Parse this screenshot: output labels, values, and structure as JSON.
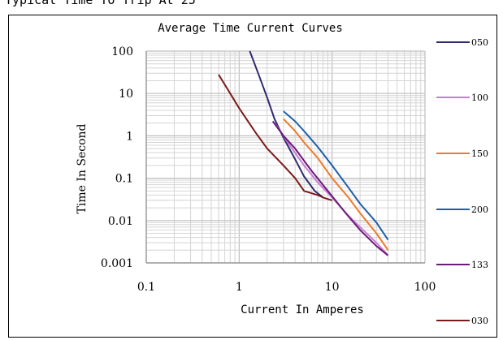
{
  "heading": "Typical Time To Trip At 25",
  "chart_data": {
    "type": "line",
    "title": "Average Time Current Curves",
    "xlabel": "Current In Amperes",
    "ylabel": "Time In Second",
    "xscale": "log",
    "yscale": "log",
    "xlim": [
      0.1,
      100
    ],
    "ylim": [
      0.001,
      100
    ],
    "x_ticks": [
      "0.1",
      "1",
      "10",
      "100"
    ],
    "y_ticks": [
      "100",
      "10",
      "1",
      "0.1",
      "0.01",
      "0.001"
    ],
    "grid": true,
    "legend_position": "right",
    "series": [
      {
        "name": "050",
        "color": "#2e2a6e",
        "points": [
          [
            1.3,
            100
          ],
          [
            1.6,
            30
          ],
          [
            2.0,
            8
          ],
          [
            2.4,
            2.5
          ],
          [
            3.0,
            0.9
          ],
          [
            4.0,
            0.28
          ],
          [
            5.0,
            0.11
          ],
          [
            6.5,
            0.05
          ],
          [
            8.0,
            0.035
          ]
        ]
      },
      {
        "name": "100",
        "color": "#c77dd6",
        "points": [
          [
            2.5,
            1.8
          ],
          [
            3.5,
            0.6
          ],
          [
            5.0,
            0.2
          ],
          [
            7.0,
            0.08
          ],
          [
            10,
            0.035
          ],
          [
            15,
            0.013
          ],
          [
            20,
            0.007
          ],
          [
            30,
            0.003
          ],
          [
            40,
            0.0015
          ]
        ]
      },
      {
        "name": "150",
        "color": "#f07a28",
        "points": [
          [
            3.0,
            2.5
          ],
          [
            4.0,
            1.3
          ],
          [
            5.0,
            0.7
          ],
          [
            7.0,
            0.3
          ],
          [
            10,
            0.1
          ],
          [
            15,
            0.035
          ],
          [
            20,
            0.015
          ],
          [
            30,
            0.005
          ],
          [
            40,
            0.002
          ]
        ]
      },
      {
        "name": "200",
        "color": "#1f5fa8",
        "points": [
          [
            3.0,
            3.8
          ],
          [
            4.0,
            2.2
          ],
          [
            5.0,
            1.3
          ],
          [
            7.0,
            0.55
          ],
          [
            10,
            0.2
          ],
          [
            15,
            0.06
          ],
          [
            20,
            0.025
          ],
          [
            30,
            0.009
          ],
          [
            40,
            0.0035
          ]
        ]
      },
      {
        "name": "133",
        "color": "#6a1a78",
        "points": [
          [
            2.3,
            2.2
          ],
          [
            3.0,
            1.0
          ],
          [
            4.0,
            0.5
          ],
          [
            6.0,
            0.15
          ],
          [
            9.0,
            0.05
          ],
          [
            14,
            0.015
          ],
          [
            20,
            0.006
          ],
          [
            30,
            0.0025
          ],
          [
            40,
            0.0015
          ]
        ]
      },
      {
        "name": "030",
        "color": "#7a1a1a",
        "points": [
          [
            0.6,
            28
          ],
          [
            0.8,
            10
          ],
          [
            1.0,
            4.5
          ],
          [
            1.5,
            1.2
          ],
          [
            2.0,
            0.5
          ],
          [
            3.0,
            0.2
          ],
          [
            4.0,
            0.1
          ],
          [
            5.0,
            0.05
          ],
          [
            7.0,
            0.04
          ],
          [
            8.0,
            0.035
          ],
          [
            10,
            0.03
          ]
        ]
      }
    ]
  }
}
